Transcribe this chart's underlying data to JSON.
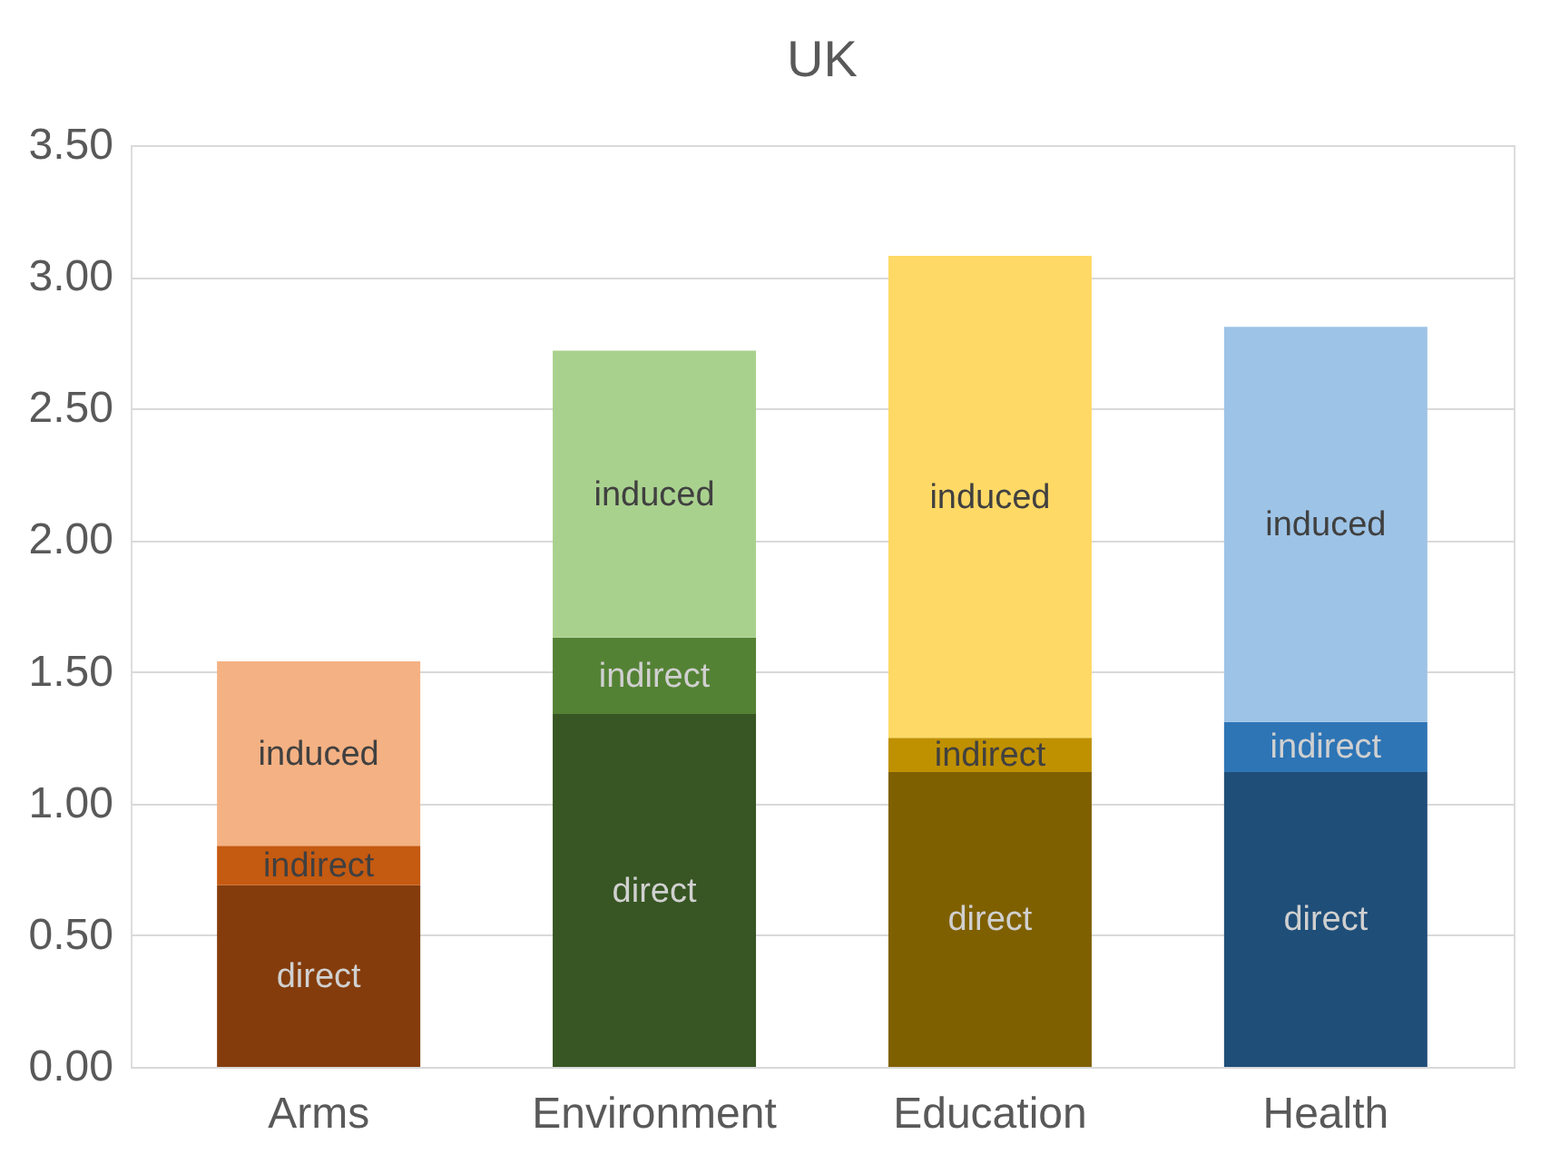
{
  "chart_data": {
    "type": "bar",
    "title": "UK",
    "stacked": true,
    "categories": [
      "Arms",
      "Environment",
      "Education",
      "Health"
    ],
    "series": [
      {
        "name": "direct",
        "colors": [
          "#843c0c",
          "#375623",
          "#7f6000",
          "#1f4e79"
        ],
        "values": [
          0.69,
          1.34,
          1.12,
          1.12
        ]
      },
      {
        "name": "indirect",
        "colors": [
          "#c55a11",
          "#548235",
          "#bf9000",
          "#2e75b6"
        ],
        "values": [
          0.15,
          0.29,
          0.13,
          0.19
        ]
      },
      {
        "name": "induced",
        "colors": [
          "#f4b183",
          "#a9d18e",
          "#ffd966",
          "#9dc3e6"
        ],
        "values": [
          0.7,
          1.09,
          1.83,
          1.5
        ]
      }
    ],
    "ylim": [
      0,
      3.5
    ],
    "yticks": [
      {
        "value": 0,
        "label": "0.00"
      },
      {
        "value": 0.5,
        "label": "0.50"
      },
      {
        "value": 1,
        "label": "1.00"
      },
      {
        "value": 1.5,
        "label": "1.50"
      },
      {
        "value": 2,
        "label": "2.00"
      },
      {
        "value": 2.5,
        "label": "2.50"
      },
      {
        "value": 3,
        "label": "3.00"
      },
      {
        "value": 3.5,
        "label": "3.50"
      }
    ],
    "grid": "y"
  }
}
